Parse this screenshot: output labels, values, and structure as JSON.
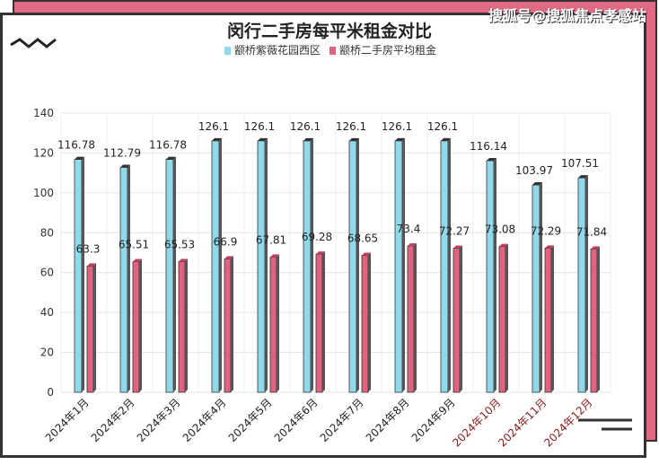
{
  "watermark": "搜狐号@搜狐焦点孝感站",
  "chart_data": {
    "type": "bar",
    "title": "闵行二手房每平米租金对比",
    "categories": [
      "2024年1月",
      "2024年2月",
      "2024年3月",
      "2024年4月",
      "2024年5月",
      "2024年6月",
      "2024年7月",
      "2024年8月",
      "2024年9月",
      "2024年10月",
      "2024年11月",
      "2024年12月"
    ],
    "series": [
      {
        "name": "颛桥紫薇花园西区",
        "color": "#8fd9ea",
        "values": [
          116.78,
          112.79,
          116.78,
          126.1,
          126.1,
          126.1,
          126.1,
          126.1,
          126.1,
          116.14,
          103.97,
          107.51
        ]
      },
      {
        "name": "颛桥二手房平均租金",
        "color": "#e0637f",
        "values": [
          63.3,
          65.51,
          65.53,
          66.9,
          67.81,
          69.28,
          68.65,
          73.4,
          72.27,
          73.08,
          72.29,
          71.84
        ]
      }
    ],
    "yticks": [
      0,
      20,
      40,
      60,
      80,
      100,
      120,
      140
    ],
    "ylim": [
      0,
      140
    ],
    "grid": true,
    "legend": "top"
  }
}
